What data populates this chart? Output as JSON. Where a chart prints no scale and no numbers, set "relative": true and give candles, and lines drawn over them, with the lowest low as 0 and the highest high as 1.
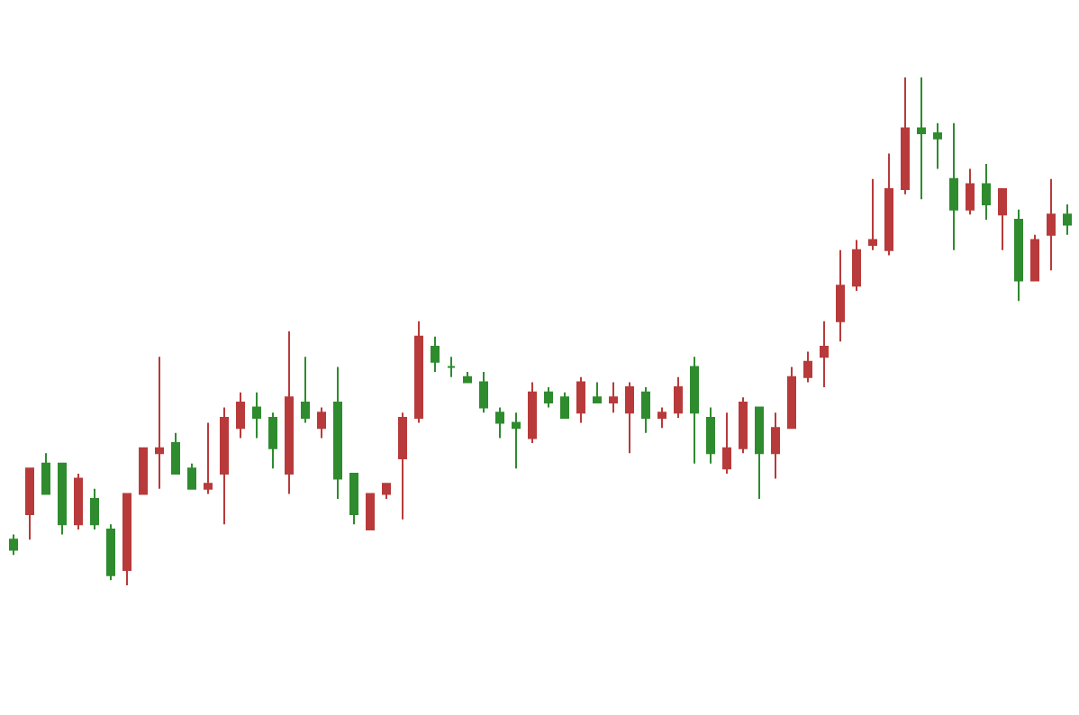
{
  "chart_data": {
    "type": "candlestick",
    "relative": true,
    "categories": [
      null,
      null,
      null,
      null,
      null,
      null,
      null,
      null,
      null,
      null,
      null,
      null,
      null,
      null,
      null,
      null,
      null,
      null,
      null,
      null,
      null,
      null,
      null,
      null,
      null,
      null,
      null,
      null,
      null,
      null,
      null,
      null,
      null,
      null,
      null,
      null,
      null,
      null,
      null,
      null,
      null,
      null,
      null,
      null,
      null,
      null,
      null,
      null,
      null,
      null,
      null,
      null,
      null,
      null,
      null,
      null,
      null,
      null,
      null,
      null,
      null,
      null,
      null,
      null,
      null,
      null
    ],
    "ohlc": [
      [
        0.09,
        0.1,
        0.06,
        0.07
      ],
      [
        0.14,
        0.23,
        0.09,
        0.23
      ],
      [
        0.24,
        0.26,
        0.18,
        0.18
      ],
      [
        0.24,
        0.24,
        0.1,
        0.12
      ],
      [
        0.12,
        0.22,
        0.11,
        0.21
      ],
      [
        0.17,
        0.19,
        0.11,
        0.12
      ],
      [
        0.11,
        0.12,
        0.01,
        0.02
      ],
      [
        0.03,
        0.18,
        0,
        0.18
      ],
      [
        0.18,
        0.27,
        0.18,
        0.27
      ],
      [
        0.26,
        0.45,
        0.19,
        0.27
      ],
      [
        0.28,
        0.3,
        0.22,
        0.22
      ],
      [
        0.23,
        0.24,
        0.19,
        0.19
      ],
      [
        0.19,
        0.32,
        0.18,
        0.2
      ],
      [
        0.22,
        0.35,
        0.12,
        0.33
      ],
      [
        0.31,
        0.38,
        0.29,
        0.36
      ],
      [
        0.35,
        0.38,
        0.29,
        0.33
      ],
      [
        0.33,
        0.34,
        0.23,
        0.27
      ],
      [
        0.22,
        0.5,
        0.18,
        0.37
      ],
      [
        0.36,
        0.45,
        0.32,
        0.33
      ],
      [
        0.31,
        0.35,
        0.29,
        0.34
      ],
      [
        0.36,
        0.43,
        0.17,
        0.21
      ],
      [
        0.22,
        0.22,
        0.12,
        0.14
      ],
      [
        0.11,
        0.18,
        0.11,
        0.18
      ],
      [
        0.18,
        0.2,
        0.17,
        0.2
      ],
      [
        0.25,
        0.34,
        0.13,
        0.33
      ],
      [
        0.33,
        0.52,
        0.32,
        0.49
      ],
      [
        0.47,
        0.49,
        0.42,
        0.44
      ],
      [
        0.43,
        0.45,
        0.41,
        0.43
      ],
      [
        0.41,
        0.42,
        0.4,
        0.4
      ],
      [
        0.4,
        0.42,
        0.34,
        0.35
      ],
      [
        0.34,
        0.35,
        0.29,
        0.32
      ],
      [
        0.32,
        0.34,
        0.23,
        0.31
      ],
      [
        0.29,
        0.4,
        0.28,
        0.38
      ],
      [
        0.38,
        0.39,
        0.35,
        0.36
      ],
      [
        0.37,
        0.38,
        0.33,
        0.33
      ],
      [
        0.34,
        0.41,
        0.32,
        0.4
      ],
      [
        0.37,
        0.4,
        0.36,
        0.36
      ],
      [
        0.36,
        0.4,
        0.34,
        0.37
      ],
      [
        0.34,
        0.4,
        0.26,
        0.39
      ],
      [
        0.38,
        0.39,
        0.3,
        0.33
      ],
      [
        0.33,
        0.35,
        0.31,
        0.34
      ],
      [
        0.34,
        0.41,
        0.33,
        0.39
      ],
      [
        0.43,
        0.45,
        0.24,
        0.34
      ],
      [
        0.33,
        0.35,
        0.24,
        0.26
      ],
      [
        0.23,
        0.34,
        0.22,
        0.27
      ],
      [
        0.27,
        0.37,
        0.26,
        0.36
      ],
      [
        0.35,
        0.35,
        0.17,
        0.26
      ],
      [
        0.26,
        0.34,
        0.21,
        0.31
      ],
      [
        0.31,
        0.43,
        0.31,
        0.41
      ],
      [
        0.41,
        0.46,
        0.4,
        0.44
      ],
      [
        0.45,
        0.52,
        0.39,
        0.47
      ],
      [
        0.52,
        0.66,
        0.48,
        0.59
      ],
      [
        0.59,
        0.68,
        0.58,
        0.66
      ],
      [
        0.67,
        0.8,
        0.66,
        0.68
      ],
      [
        0.66,
        0.85,
        0.65,
        0.78
      ],
      [
        0.78,
        1,
        0.77,
        0.9
      ],
      [
        0.9,
        1,
        0.76,
        0.89
      ],
      [
        0.89,
        0.91,
        0.82,
        0.88
      ],
      [
        0.8,
        0.91,
        0.66,
        0.74
      ],
      [
        0.74,
        0.82,
        0.73,
        0.79
      ],
      [
        0.79,
        0.83,
        0.72,
        0.75
      ],
      [
        0.73,
        0.78,
        0.66,
        0.78
      ],
      [
        0.72,
        0.74,
        0.56,
        0.6
      ],
      [
        0.6,
        0.69,
        0.6,
        0.68
      ],
      [
        0.69,
        0.8,
        0.62,
        0.73
      ],
      [
        0.73,
        0.75,
        0.69,
        0.71
      ]
    ],
    "colors": [
      "#2e8b2e",
      "#b83a3a",
      "#2e8b2e",
      "#2e8b2e",
      "#b83a3a",
      "#2e8b2e",
      "#2e8b2e",
      "#b83a3a",
      "#b83a3a",
      "#b83a3a",
      "#2e8b2e",
      "#2e8b2e",
      "#b83a3a",
      "#b83a3a",
      "#b83a3a",
      "#2e8b2e",
      "#2e8b2e",
      "#b83a3a",
      "#2e8b2e",
      "#b83a3a",
      "#2e8b2e",
      "#2e8b2e",
      "#b83a3a",
      "#b83a3a",
      "#b83a3a",
      "#b83a3a",
      "#2e8b2e",
      "#2e8b2e",
      "#2e8b2e",
      "#2e8b2e",
      "#2e8b2e",
      "#2e8b2e",
      "#b83a3a",
      "#2e8b2e",
      "#2e8b2e",
      "#b83a3a",
      "#2e8b2e",
      "#b83a3a",
      "#b83a3a",
      "#2e8b2e",
      "#b83a3a",
      "#b83a3a",
      "#2e8b2e",
      "#2e8b2e",
      "#b83a3a",
      "#b83a3a",
      "#2e8b2e",
      "#b83a3a",
      "#b83a3a",
      "#b83a3a",
      "#b83a3a",
      "#b83a3a",
      "#b83a3a",
      "#b83a3a",
      "#b83a3a",
      "#b83a3a",
      "#2e8b2e",
      "#2e8b2e",
      "#2e8b2e",
      "#b83a3a",
      "#2e8b2e",
      "#b83a3a",
      "#2e8b2e",
      "#b83a3a",
      "#b83a3a",
      "#2e8b2e"
    ]
  }
}
